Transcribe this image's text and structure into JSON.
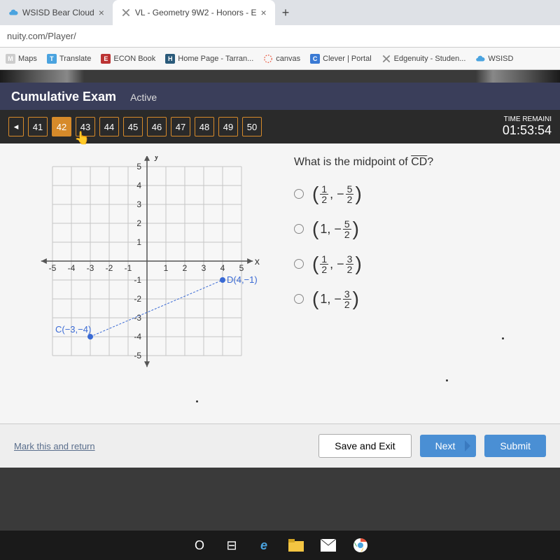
{
  "browser": {
    "tabs": [
      {
        "title": "WSISD Bear Cloud",
        "icon_color": "#4aa3df"
      },
      {
        "title": "VL - Geometry 9W2 - Honors - E",
        "icon_color": "#888"
      }
    ],
    "url": "nuity.com/Player/",
    "bookmarks": [
      {
        "label": "Maps",
        "color": "#ccc"
      },
      {
        "label": "Translate",
        "color": "#4aa3df"
      },
      {
        "label": "ECON Book",
        "color": "#b33"
      },
      {
        "label": "Home Page - Tarran...",
        "color": "#2a5a7a"
      },
      {
        "label": "canvas",
        "color": "#e8533a"
      },
      {
        "label": "Clever | Portal",
        "color": "#3a7ad4"
      },
      {
        "label": "Edgenuity - Studen...",
        "color": "#888"
      },
      {
        "label": "WSISD",
        "color": "#4aa3df"
      }
    ]
  },
  "exam": {
    "title": "Cumulative Exam",
    "status": "Active",
    "nav_numbers": [
      "41",
      "42",
      "43",
      "44",
      "45",
      "46",
      "47",
      "48",
      "49",
      "50"
    ],
    "current": "42",
    "time_label": "TIME REMAINI",
    "time_value": "01:53:54"
  },
  "question": {
    "text": "What is the midpoint of ",
    "segment": "CD",
    "options": [
      {
        "type": "fracfrac",
        "a_n": "1",
        "a_d": "2",
        "b_sign": "−",
        "b_n": "5",
        "b_d": "2"
      },
      {
        "type": "intfrac",
        "a": "1",
        "b_sign": "−",
        "b_n": "5",
        "b_d": "2"
      },
      {
        "type": "fracfrac",
        "a_n": "1",
        "a_d": "2",
        "b_sign": "−",
        "b_n": "3",
        "b_d": "2"
      },
      {
        "type": "intfrac",
        "a": "1",
        "b_sign": "−",
        "b_n": "3",
        "b_d": "2"
      }
    ]
  },
  "graph": {
    "background_color": "#f7f7f7",
    "grid_color": "#c5c5c5",
    "axis_color": "#555",
    "line_color": "#3a6ad4",
    "point_color": "#3a6ad4",
    "label_color": "#3a6ad4",
    "xlim": [
      -5,
      5
    ],
    "ylim": [
      -5,
      5
    ],
    "xticks": [
      "-5",
      "-4",
      "-3",
      "-2",
      "-1",
      "1",
      "2",
      "3",
      "4",
      "5"
    ],
    "yticks_pos": [
      "1",
      "2",
      "3",
      "4",
      "5"
    ],
    "yticks_neg": [
      "-2",
      "-3",
      "-4",
      "-5"
    ],
    "ylabel": "y",
    "xlabel": "x",
    "neg1_label": "-1",
    "points": {
      "C": {
        "x": -3,
        "y": -4,
        "label": "C(−3,−4)"
      },
      "D": {
        "x": 4,
        "y": -1,
        "label": "D(4,−1)"
      }
    }
  },
  "footer": {
    "mark": "Mark this and return",
    "save": "Save and Exit",
    "next": "Next",
    "submit": "Submit"
  }
}
